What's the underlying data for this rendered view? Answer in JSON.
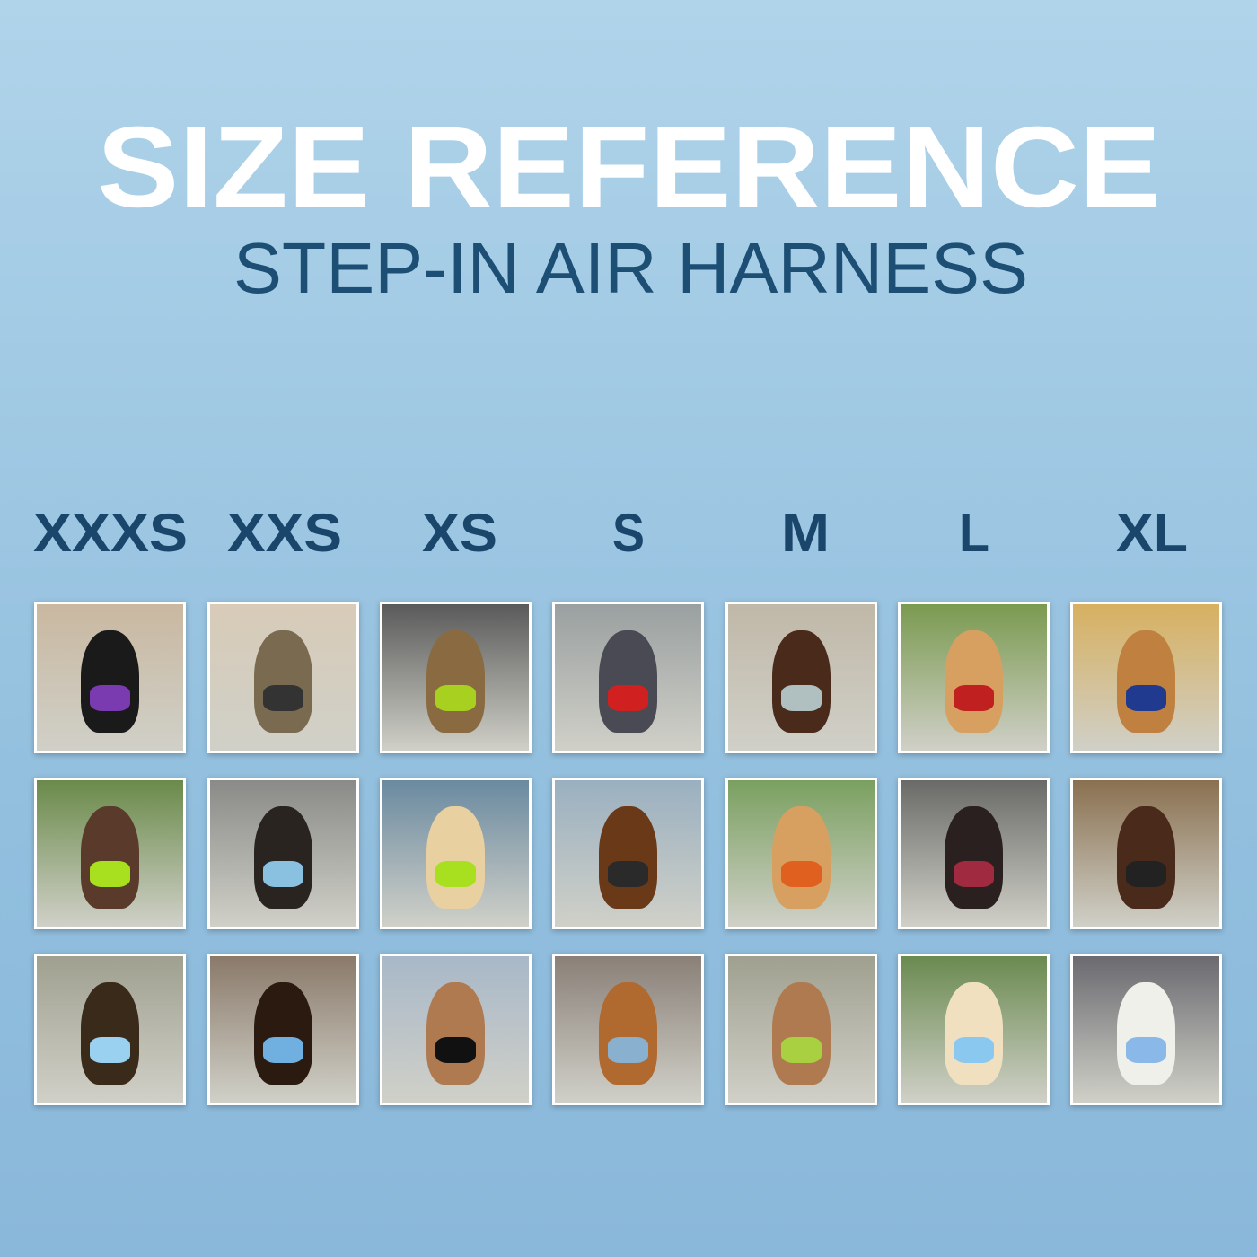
{
  "header": {
    "title": "SIZE REFERENCE",
    "subtitle": "STEP-IN AIR HARNESS"
  },
  "sizes": [
    {
      "label": "XXXS"
    },
    {
      "label": "XXS"
    },
    {
      "label": "XS"
    },
    {
      "label": "S"
    },
    {
      "label": "M"
    },
    {
      "label": "L"
    },
    {
      "label": "XL"
    }
  ],
  "colors": {
    "title": "#ffffff",
    "subtitle": "#1d4f75",
    "size_label": "#1a466b"
  }
}
